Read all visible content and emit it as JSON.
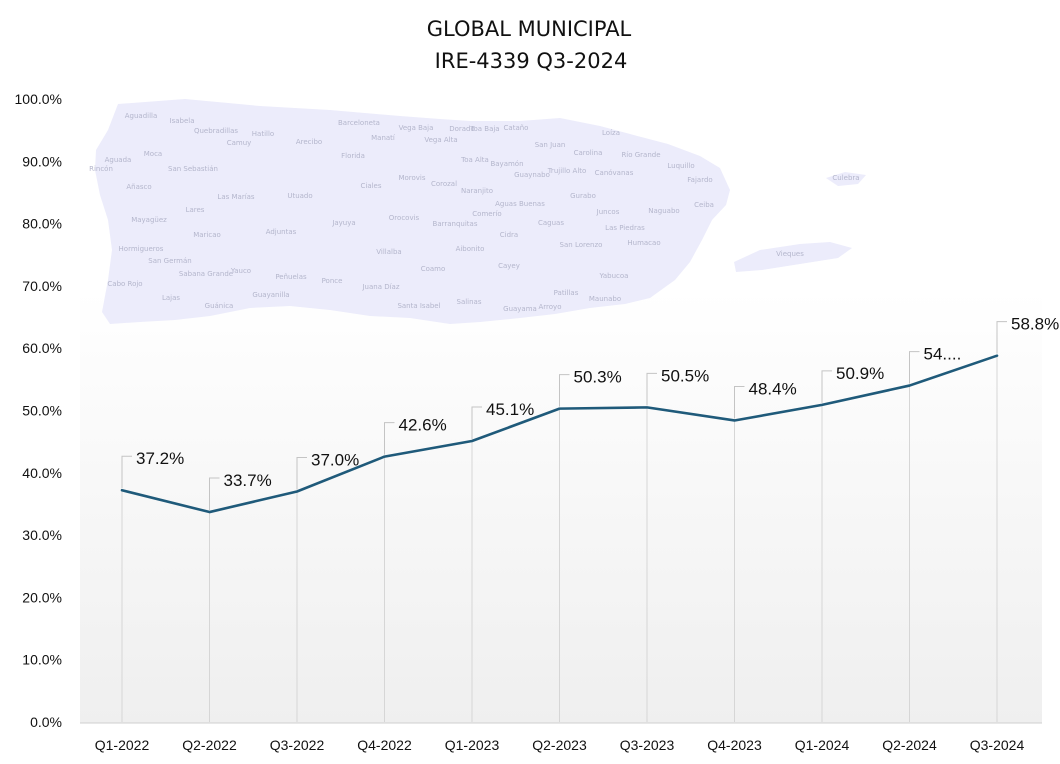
{
  "chart_data": {
    "type": "line",
    "title_lines": [
      "GLOBAL MUNICIPAL",
      "IRE-4339 Q3-2024"
    ],
    "categories": [
      "Q1-2022",
      "Q2-2022",
      "Q3-2022",
      "Q4-2022",
      "Q1-2023",
      "Q2-2023",
      "Q3-2023",
      "Q4-2023",
      "Q1-2024",
      "Q2-2024",
      "Q3-2024"
    ],
    "values": [
      37.2,
      33.7,
      37.0,
      42.6,
      45.1,
      50.3,
      50.5,
      48.4,
      50.9,
      54.0,
      58.8
    ],
    "data_labels": [
      "37.2%",
      "33.7%",
      "37.0%",
      "42.6%",
      "45.1%",
      "50.3%",
      "50.5%",
      "48.4%",
      "50.9%",
      "54....",
      "58.8%"
    ],
    "y_ticks": [
      "0.0%",
      "10.0%",
      "20.0%",
      "30.0%",
      "40.0%",
      "50.0%",
      "60.0%",
      "70.0%",
      "80.0%",
      "90.0%",
      "100.0%"
    ],
    "ylim": [
      0,
      100
    ],
    "line_color": "#1f5a7a",
    "grid": false,
    "legend": "none",
    "background_image": {
      "type": "map",
      "fill_color": "#ececfb",
      "labels": [
        "Aguadilla",
        "Isabela",
        "Quebradillas",
        "Hatillo",
        "Camuy",
        "Arecibo",
        "Barceloneta",
        "Manatí",
        "Vega Baja",
        "Vega Alta",
        "Dorado",
        "Toa Baja",
        "Cataño",
        "San Juan",
        "Loíza",
        "Carolina",
        "Río Grande",
        "Luquillo",
        "Fajardo",
        "Culebra",
        "Ceiba",
        "Naguabo",
        "Aguada",
        "Rincón",
        "Moca",
        "San Sebastián",
        "Añasco",
        "Lares",
        "Las Marías",
        "Mayagüez",
        "Maricao",
        "Hormigueros",
        "San Germán",
        "Cabo Rojo",
        "Lajas",
        "Sabana Grande",
        "Yauco",
        "Guánica",
        "Adjuntas",
        "Peñuelas",
        "Guayanilla",
        "Ponce",
        "Utuado",
        "Jayuya",
        "Ciales",
        "Florida",
        "Morovis",
        "Orocovis",
        "Villalba",
        "Juana Díaz",
        "Santa Isabel",
        "Coamo",
        "Salinas",
        "Corozal",
        "Naranjito",
        "Barranquitas",
        "Aibonito",
        "Comerío",
        "Cidra",
        "Cayey",
        "Guayama",
        "Arroyo",
        "Patillas",
        "Maunabo",
        "Yabucoa",
        "Humacao",
        "Las Piedras",
        "Juncos",
        "Gurabo",
        "Caguas",
        "Aguas Buenas",
        "San Lorenzo",
        "Toa Alta",
        "Bayamón",
        "Guaynabo",
        "Trujillo Alto",
        "Canóvanas",
        "Vieques"
      ]
    }
  }
}
